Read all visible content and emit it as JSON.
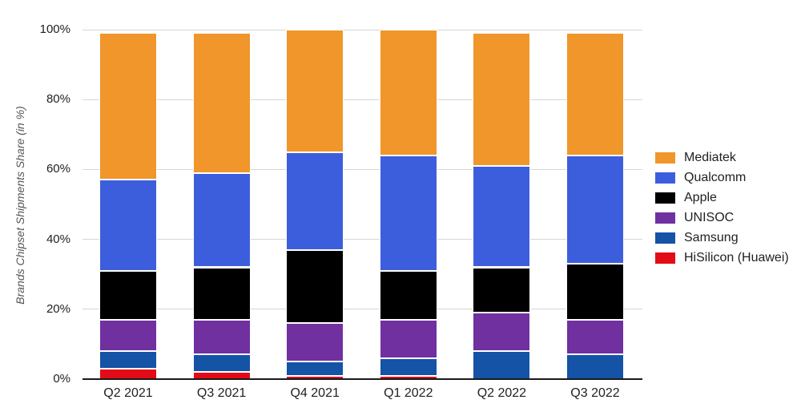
{
  "page": {
    "background": "#ffffff"
  },
  "chart_data": {
    "type": "bar",
    "stacked": true,
    "percent_stacked": true,
    "title": "",
    "xlabel": "",
    "ylabel": "Brands Chipset Shipments Share (in %)",
    "ylim": [
      0,
      100
    ],
    "grid": true,
    "y_ticks": [
      "0%",
      "20%",
      "40%",
      "60%",
      "80%",
      "100%"
    ],
    "y_tick_values": [
      0,
      20,
      40,
      60,
      80,
      100
    ],
    "categories": [
      "Q2 2021",
      "Q3 2021",
      "Q4 2021",
      "Q1 2022",
      "Q2 2022",
      "Q3 2022"
    ],
    "series_bottom_to_top": [
      {
        "name": "HiSilicon (Huawei)",
        "color": "#e30b17",
        "values": [
          3,
          2,
          1,
          1,
          0,
          0
        ]
      },
      {
        "name": "Samsung",
        "color": "#1453a5",
        "values": [
          5,
          5,
          4,
          5,
          8,
          7
        ]
      },
      {
        "name": "UNISOC",
        "color": "#7030a0",
        "values": [
          9,
          10,
          11,
          11,
          11,
          10
        ]
      },
      {
        "name": "Apple",
        "color": "#000000",
        "values": [
          14,
          15,
          21,
          14,
          13,
          16
        ]
      },
      {
        "name": "Qualcomm",
        "color": "#3d5edc",
        "values": [
          26,
          27,
          28,
          33,
          29,
          31
        ]
      },
      {
        "name": "Mediatek",
        "color": "#f0962b",
        "values": [
          42,
          40,
          35,
          36,
          38,
          35
        ]
      }
    ],
    "column_totals": [
      99,
      99,
      100,
      100,
      99,
      99
    ],
    "legend": {
      "position": "right",
      "labels_top_to_bottom": [
        "Mediatek",
        "Qualcomm",
        "Apple",
        "UNISOC",
        "Samsung",
        "HiSilicon (Huawei)"
      ]
    },
    "colors": {
      "gridline": "#d6d6d6",
      "axis_line": "#1a1a1a",
      "tick_text": "#1f1f1f",
      "axis_title_text": "#555555"
    }
  }
}
